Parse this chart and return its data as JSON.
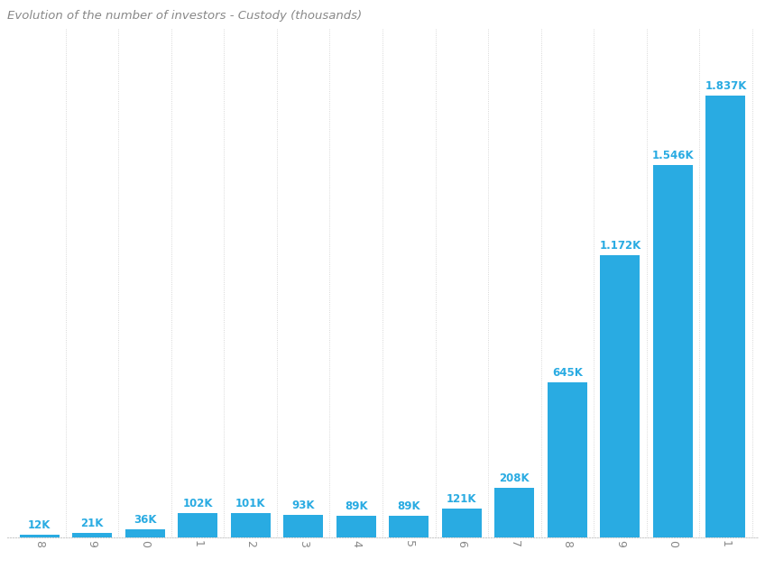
{
  "title": "Evolution of the number of investors - Custody (thousands)",
  "values": [
    12,
    21,
    36,
    102,
    101,
    93,
    89,
    89,
    121,
    208,
    645,
    1172,
    1546,
    1837
  ],
  "labels": [
    "12K",
    "21K",
    "36K",
    "102K",
    "101K",
    "93K",
    "89K",
    "89K",
    "121K",
    "208K",
    "645K",
    "1.172K",
    "1.546K",
    "1.837K"
  ],
  "year_labels": [
    "8",
    "9",
    "0",
    "1",
    "2",
    "3",
    "4",
    "5",
    "6",
    "7",
    "8",
    "9",
    "0",
    "1"
  ],
  "bar_color": "#29ABE2",
  "label_color": "#29ABE2",
  "title_color": "#888888",
  "background_color": "#ffffff",
  "title_fontsize": 9.5,
  "label_fontsize": 8.5,
  "tick_fontsize": 9,
  "bar_width": 0.75
}
